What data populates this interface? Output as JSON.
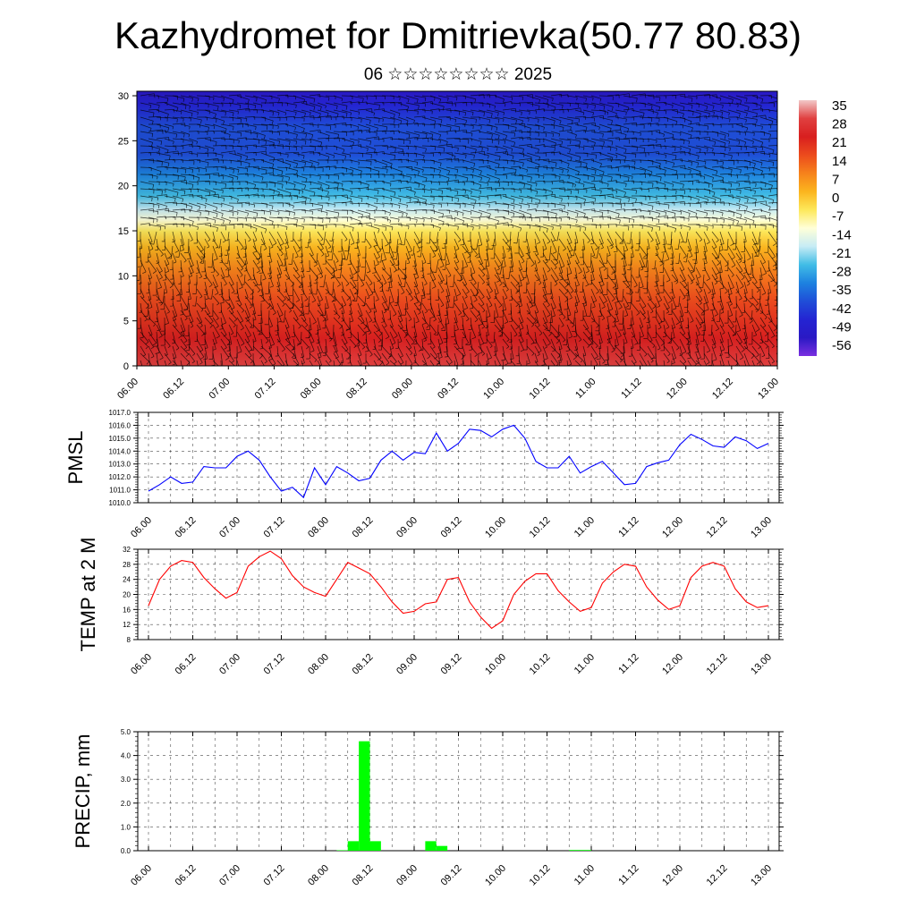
{
  "title": "Kazhydromet for Dmitrievka(50.77 80.83)",
  "subtitle": "06 ☆☆☆☆☆☆☆☆ 2025",
  "chart_data": [
    {
      "type": "heatmap",
      "x_ticks": [
        "06.00",
        "06.12",
        "07.00",
        "07.12",
        "08.00",
        "08.12",
        "09.00",
        "09.12",
        "10.00",
        "10.12",
        "11.00",
        "11.12",
        "12.00",
        "12.12",
        "13.00"
      ],
      "y_ticks": [
        "0",
        "5",
        "10",
        "15",
        "20",
        "25",
        "30"
      ],
      "ylim": [
        0,
        30.5
      ],
      "colorbar_labels": [
        "35",
        "28",
        "21",
        "14",
        "7",
        "0",
        "-7",
        "-14",
        "-21",
        "-28",
        "-35",
        "-42",
        "-49",
        "-56"
      ],
      "colorbar_colors": [
        "#f2c8c8",
        "#e04040",
        "#d81f1f",
        "#ec4b1d",
        "#f6821b",
        "#fbb51e",
        "#fde85a",
        "#ffffd8",
        "#c7ecf5",
        "#41bde6",
        "#1d82e0",
        "#1f4ed8",
        "#2424d2",
        "#2a19c4",
        "#7a2fe0"
      ],
      "description_overlay": "wind barbs"
    },
    {
      "type": "line",
      "ylabel": "PMSL",
      "x_ticks": [
        "06.00",
        "06.12",
        "07.00",
        "07.12",
        "08.00",
        "08.12",
        "09.00",
        "09.12",
        "10.00",
        "10.12",
        "11.00",
        "11.12",
        "12.00",
        "12.12",
        "13.00"
      ],
      "y_ticks": [
        "1010.0",
        "1011.0",
        "1012.0",
        "1013.0",
        "1014.0",
        "1015.0",
        "1016.0",
        "1017.0"
      ],
      "ylim": [
        1010,
        1017
      ],
      "series": [
        {
          "color": "#0000ff",
          "x": [
            0,
            3,
            6,
            9,
            12,
            15,
            18,
            21,
            24,
            27,
            30,
            33,
            36,
            39,
            42,
            45,
            48,
            51,
            54,
            57,
            60,
            63,
            66,
            69,
            72,
            75,
            78,
            81,
            84,
            87,
            90,
            93,
            96,
            99,
            102,
            105,
            108,
            111,
            114,
            117,
            120,
            123,
            126,
            129,
            132,
            135,
            138,
            141,
            144,
            147,
            150,
            153,
            156,
            159,
            162,
            165,
            168
          ],
          "y": [
            1010.9,
            1011.4,
            1012.0,
            1011.5,
            1011.6,
            1012.8,
            1012.7,
            1012.7,
            1013.6,
            1014.0,
            1013.3,
            1012.0,
            1010.9,
            1011.2,
            1010.4,
            1012.7,
            1011.4,
            1012.8,
            1012.3,
            1011.7,
            1011.9,
            1013.3,
            1014.0,
            1013.3,
            1013.9,
            1013.8,
            1015.4,
            1014.0,
            1014.6,
            1015.7,
            1015.6,
            1015.1,
            1015.7,
            1016.0,
            1015.0,
            1013.2,
            1012.7,
            1012.7,
            1013.6,
            1012.3,
            1012.8,
            1013.2,
            1012.3,
            1011.4,
            1011.5,
            1012.8,
            1013.1,
            1013.3,
            1014.5,
            1015.3,
            1014.9,
            1014.4,
            1014.3,
            1015.1,
            1014.8,
            1014.2,
            1014.6
          ]
        }
      ]
    },
    {
      "type": "line",
      "ylabel": "TEMP at 2 M",
      "x_ticks": [
        "06.00",
        "06.12",
        "07.00",
        "07.12",
        "08.00",
        "08.12",
        "09.00",
        "09.12",
        "10.00",
        "10.12",
        "11.00",
        "11.12",
        "12.00",
        "12.12",
        "13.00"
      ],
      "y_ticks": [
        "8",
        "12",
        "16",
        "20",
        "24",
        "28",
        "32"
      ],
      "ylim": [
        8,
        32
      ],
      "series": [
        {
          "color": "#ff0000",
          "x": [
            0,
            3,
            6,
            9,
            12,
            15,
            18,
            21,
            24,
            27,
            30,
            33,
            36,
            39,
            42,
            45,
            48,
            51,
            54,
            57,
            60,
            63,
            66,
            69,
            72,
            75,
            78,
            81,
            84,
            87,
            90,
            93,
            96,
            99,
            102,
            105,
            108,
            111,
            114,
            117,
            120,
            123,
            126,
            129,
            132,
            135,
            138,
            141,
            144,
            147,
            150,
            153,
            156,
            159,
            162,
            165,
            168
          ],
          "y": [
            17,
            24,
            27.5,
            29,
            28.5,
            24.5,
            21.5,
            19,
            20.5,
            27.5,
            30,
            31.5,
            29.5,
            25,
            22,
            20.5,
            19.5,
            24,
            28.5,
            27,
            25.5,
            22,
            18,
            15,
            15.5,
            17.5,
            18,
            24,
            24.5,
            18,
            14,
            11,
            13,
            20,
            23.5,
            25.5,
            25.5,
            21,
            18,
            15.5,
            16.5,
            23,
            26,
            28,
            27.5,
            22,
            18.5,
            16,
            17,
            24.5,
            27.5,
            28.5,
            27.5,
            21.5,
            18,
            16.5,
            17
          ]
        }
      ]
    },
    {
      "type": "bar",
      "ylabel": "PRECIP, mm",
      "x_ticks": [
        "06.00",
        "06.12",
        "07.00",
        "07.12",
        "08.00",
        "08.12",
        "09.00",
        "09.12",
        "10.00",
        "10.12",
        "11.00",
        "11.12",
        "12.00",
        "12.12",
        "13.00"
      ],
      "y_ticks": [
        "0.0",
        "1.0",
        "2.0",
        "3.0",
        "4.0",
        "5.0"
      ],
      "ylim": [
        0,
        5
      ],
      "color": "#00ff00",
      "bars": [
        {
          "x0": 51,
          "x1": 54,
          "y": 0.02
        },
        {
          "x0": 54,
          "x1": 57,
          "y": 0.4
        },
        {
          "x0": 57,
          "x1": 60,
          "y": 4.6
        },
        {
          "x0": 60,
          "x1": 63,
          "y": 0.4
        },
        {
          "x0": 75,
          "x1": 78,
          "y": 0.4
        },
        {
          "x0": 78,
          "x1": 81,
          "y": 0.2
        },
        {
          "x0": 114,
          "x1": 117,
          "y": 0.03
        },
        {
          "x0": 117,
          "x1": 120,
          "y": 0.03
        }
      ]
    }
  ]
}
